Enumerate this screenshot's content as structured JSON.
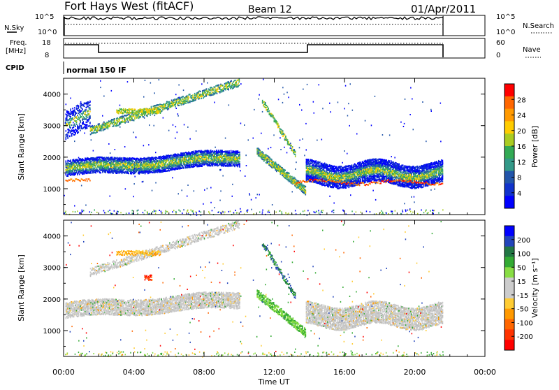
{
  "header": {
    "station": "Fort Hays West (fitACF)",
    "beam": "Beam 12",
    "date": "01/Apr/2011"
  },
  "top_panels": {
    "nsky_label": "N.Sky",
    "nsky_ticks": [
      "10^5",
      "10^0"
    ],
    "nsearch_label": "N.Search",
    "freq_label_1": "Freq.",
    "freq_label_2": "[MHz]",
    "freq_ticks": [
      "18",
      "8"
    ],
    "nave_ticks": [
      "60",
      "0"
    ],
    "nave_label": "Nave",
    "cpid_label": "CPID",
    "cpid_value": "normal 150 IF"
  },
  "chart_data": [
    {
      "type": "heatmap",
      "name": "power",
      "ylabel": "Slant Range [km]",
      "xlabel": "Time UT",
      "ylim": [
        180,
        4500
      ],
      "xlim": [
        0,
        24
      ],
      "x_tick_labels": [
        "00:00",
        "04:00",
        "08:00",
        "12:00",
        "16:00",
        "20:00",
        "00:00"
      ],
      "y_tick_labels": [
        "1000",
        "2000",
        "3000",
        "4000"
      ],
      "colorbar_label": "Power [dB]",
      "colorbar_ticks": [
        "28",
        "24",
        "20",
        "16",
        "12",
        "8",
        "4"
      ],
      "colorbar_colors": [
        "#ff0000",
        "#ff6600",
        "#ff9900",
        "#ffcc00",
        "#aacc22",
        "#33aa55",
        "#339988",
        "#2255aa",
        "#1133cc",
        "#0000ff"
      ]
    },
    {
      "type": "heatmap",
      "name": "velocity",
      "ylabel": "Slant Range [km]",
      "xlabel": "Time UT",
      "ylim": [
        180,
        4500
      ],
      "xlim": [
        0,
        24
      ],
      "x_tick_labels": [
        "00:00",
        "04:00",
        "08:00",
        "12:00",
        "16:00",
        "20:00",
        "00:00"
      ],
      "y_tick_labels": [
        "1000",
        "2000",
        "3000",
        "4000"
      ],
      "colorbar_label": "Velocity [m s⁻¹]",
      "colorbar_ticks": [
        "200",
        "100",
        "50",
        "15",
        "-15",
        "-50",
        "-100",
        "-200"
      ],
      "colorbar_colors": [
        "#0000ff",
        "#2244bb",
        "#227744",
        "#33aa33",
        "#88dd44",
        "#cccccc",
        "#cccccc",
        "#ffcc33",
        "#ff9900",
        "#ff6600",
        "#ff3300",
        "#ff0000"
      ]
    }
  ],
  "x_axis_title": "Time UT"
}
